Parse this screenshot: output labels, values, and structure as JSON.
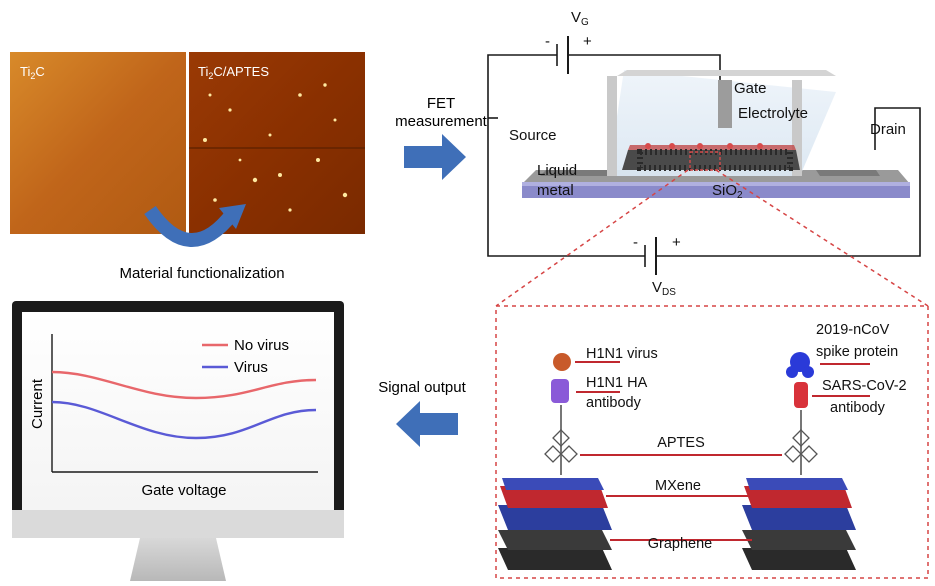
{
  "afm": {
    "left_label": "Ti",
    "left_label_sub": "2",
    "left_label_suffix": "C",
    "right_label": "Ti",
    "right_label_sub": "2",
    "right_label_suffix": "C/APTES",
    "caption": "Material functionalization"
  },
  "fet_arrow": {
    "line1": "FET",
    "line2": "measurement"
  },
  "circuit": {
    "vg": "V",
    "vg_sub": "G",
    "vds": "V",
    "vds_sub": "DS",
    "minus": "-",
    "plus": "+",
    "gate": "Gate",
    "electrolyte": "Electrolyte",
    "source": "Source",
    "drain": "Drain",
    "liquid1": "Liquid",
    "liquid2": "metal",
    "sio2": "SiO",
    "sio2_sub": "2"
  },
  "monitor": {
    "legend": [
      "No virus",
      "Virus"
    ],
    "xlabel": "Gate voltage",
    "ylabel": "Current"
  },
  "signal_output": "Signal output",
  "molecular": {
    "left_top": "H1N1 virus",
    "left_mid1": "H1N1 HA",
    "left_mid2": "antibody",
    "right_top1": "2019-nCoV",
    "right_top2": "spike protein",
    "right_mid1": "SARS-CoV-2",
    "right_mid2": "antibody",
    "aptes": "APTES",
    "mxene": "MXene",
    "graphene": "Graphene"
  },
  "colors": {
    "no_virus": "#e8676b",
    "virus": "#5a5ad6",
    "arrow": "#3f6fb8",
    "afm_dark": "#7a2e00",
    "afm_light": "#d4791a",
    "dashed": "#d64545"
  }
}
